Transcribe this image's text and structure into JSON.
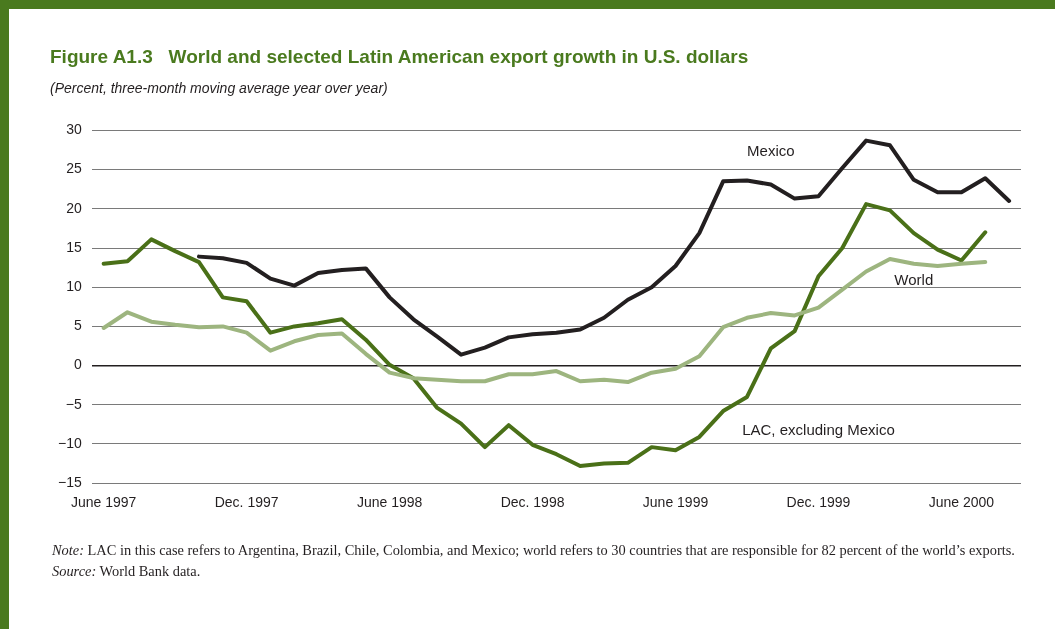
{
  "chart_data": {
    "type": "line",
    "title": "Figure A1.3   World and selected Latin American export growth in U.S. dollars",
    "subtitle": "(Percent, three-month moving average year over year)",
    "categories": [
      "June 1997",
      null,
      null,
      null,
      null,
      null,
      "Dec. 1997",
      null,
      null,
      null,
      null,
      null,
      "June 1998",
      null,
      null,
      null,
      null,
      null,
      "Dec. 1998",
      null,
      null,
      null,
      null,
      null,
      "June 1999",
      null,
      null,
      null,
      null,
      null,
      "Dec. 1999",
      null,
      null,
      null,
      null,
      null,
      "June 2000",
      null,
      null
    ],
    "series": [
      {
        "name": "Mexico",
        "color": "#231f20",
        "values": [
          null,
          null,
          null,
          null,
          13.9,
          13.7,
          13.1,
          11.1,
          10.2,
          11.8,
          12.2,
          12.4,
          8.7,
          5.9,
          3.7,
          1.4,
          2.3,
          3.6,
          4.0,
          4.2,
          4.6,
          6.1,
          8.4,
          10.0,
          12.7,
          16.9,
          23.5,
          23.6,
          23.1,
          21.3,
          21.6,
          25.2,
          28.7,
          28.1,
          23.7,
          22.1,
          22.1,
          23.9,
          21.0
        ]
      },
      {
        "name": "World",
        "color": "#9db57f",
        "values": [
          4.8,
          6.8,
          5.6,
          5.2,
          4.9,
          5.0,
          4.2,
          1.9,
          3.1,
          3.9,
          4.1,
          1.5,
          -0.9,
          -1.6,
          -1.8,
          -2.0,
          -2.0,
          -1.1,
          -1.1,
          -0.7,
          -2.0,
          -1.8,
          -2.1,
          -0.9,
          -0.4,
          1.2,
          4.9,
          6.1,
          6.7,
          6.4,
          7.4,
          9.7,
          12.0,
          13.6,
          13.0,
          12.7,
          13.0,
          13.2,
          null
        ]
      },
      {
        "name": "LAC, excluding Mexico",
        "color": "#4a7018",
        "values": [
          13.0,
          13.3,
          16.1,
          14.6,
          13.2,
          8.7,
          8.2,
          4.2,
          5.0,
          5.4,
          5.9,
          3.3,
          0.1,
          -1.6,
          -5.4,
          -7.4,
          -10.4,
          -7.6,
          -10.1,
          -11.3,
          -12.8,
          -12.5,
          -12.4,
          -10.4,
          -10.8,
          -9.1,
          -5.8,
          -4.0,
          2.2,
          4.4,
          11.4,
          15.0,
          20.6,
          19.8,
          16.9,
          14.8,
          13.4,
          17.0,
          null
        ]
      }
    ],
    "ylim": [
      -15,
      30
    ],
    "yticks": [
      -15,
      -10,
      -5,
      0,
      5,
      10,
      15,
      20,
      25,
      30
    ],
    "grid": "y",
    "legend": false,
    "marker": "none",
    "line_style": "solid",
    "annotations": [
      "Note: LAC in this case refers to Argentina, Brazil, Chile, Colombia, and Mexico; world refers to 30 countries that are responsible for 82 percent of the world’s exports.",
      "Source: World Bank data."
    ]
  }
}
